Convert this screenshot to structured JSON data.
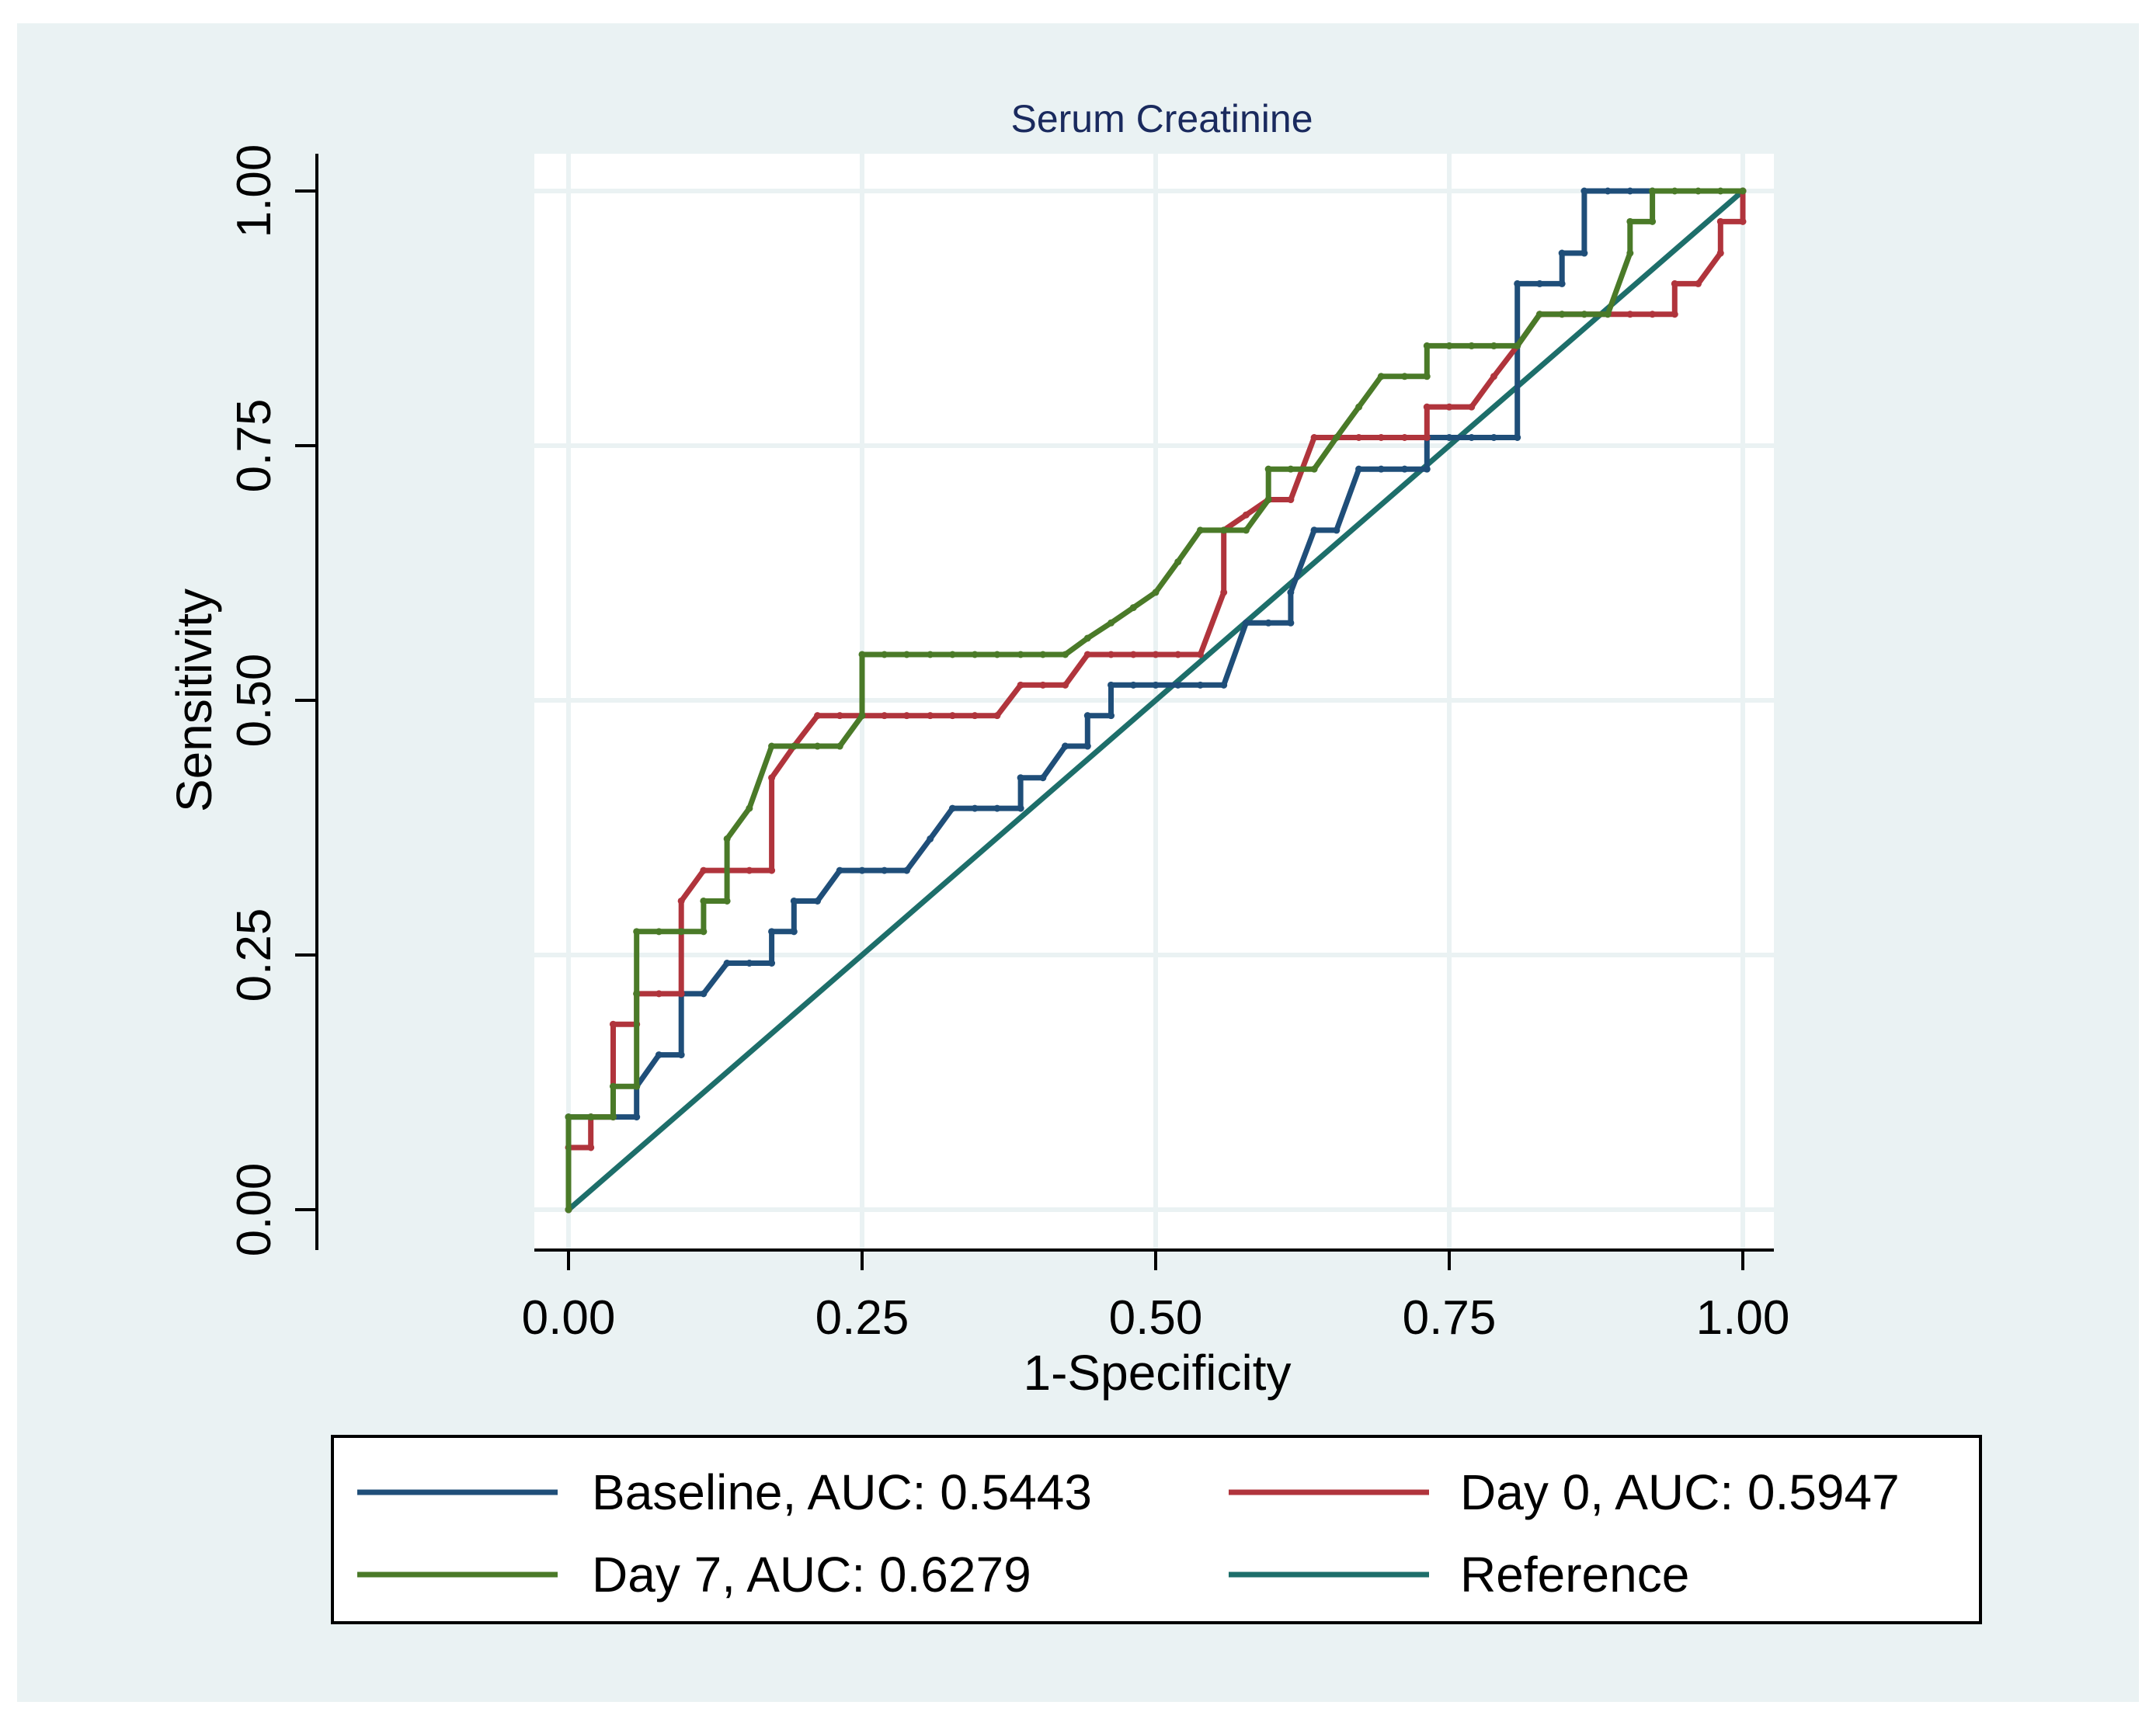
{
  "chart_data": {
    "type": "line",
    "title": "Serum Creatinine",
    "xlabel": "1-Specificity",
    "ylabel": "Sensitivity",
    "xlim": [
      0,
      1
    ],
    "ylim": [
      0,
      1
    ],
    "xticks": [
      0,
      0.25,
      0.5,
      0.75,
      1
    ],
    "yticks": [
      0,
      0.25,
      0.5,
      0.75,
      1
    ],
    "xtick_labels": [
      "0.00",
      "0.25",
      "0.50",
      "0.75",
      "1.00"
    ],
    "ytick_labels": [
      "0.00",
      "0.25",
      "0.50",
      "0.75",
      "1.00"
    ],
    "grid": true,
    "legend_position": "bottom",
    "series": [
      {
        "name": "Baseline",
        "legend_label": "Baseline, AUC: 0.5443",
        "auc": 0.5443,
        "color": "#1f4e79",
        "x": [
          0,
          0,
          0.019,
          0.058,
          0.058,
          0.077,
          0.096,
          0.096,
          0.115,
          0.135,
          0.154,
          0.173,
          0.173,
          0.192,
          0.192,
          0.212,
          0.231,
          0.25,
          0.269,
          0.288,
          0.308,
          0.327,
          0.346,
          0.365,
          0.385,
          0.385,
          0.404,
          0.423,
          0.423,
          0.442,
          0.442,
          0.462,
          0.462,
          0.481,
          0.5,
          0.519,
          0.538,
          0.558,
          0.577,
          0.596,
          0.615,
          0.615,
          0.635,
          0.635,
          0.654,
          0.673,
          0.692,
          0.712,
          0.731,
          0.731,
          0.75,
          0.769,
          0.788,
          0.808,
          0.808,
          0.827,
          0.846,
          0.846,
          0.865,
          0.865,
          0.885,
          0.904,
          0.923,
          1
        ],
        "y": [
          0,
          0.091,
          0.091,
          0.091,
          0.121,
          0.152,
          0.152,
          0.212,
          0.212,
          0.242,
          0.242,
          0.242,
          0.273,
          0.273,
          0.303,
          0.303,
          0.333,
          0.333,
          0.333,
          0.333,
          0.364,
          0.394,
          0.394,
          0.394,
          0.394,
          0.424,
          0.424,
          0.455,
          0.455,
          0.455,
          0.485,
          0.485,
          0.515,
          0.515,
          0.515,
          0.515,
          0.515,
          0.515,
          0.576,
          0.576,
          0.576,
          0.606,
          0.667,
          0.667,
          0.667,
          0.727,
          0.727,
          0.727,
          0.727,
          0.758,
          0.758,
          0.758,
          0.758,
          0.758,
          0.909,
          0.909,
          0.909,
          0.939,
          0.939,
          1,
          1,
          1,
          1,
          1
        ]
      },
      {
        "name": "Day 0",
        "legend_label": "Day 0, AUC: 0.5947",
        "auc": 0.5947,
        "color": "#b0343c",
        "x": [
          0,
          0,
          0.019,
          0.019,
          0.038,
          0.038,
          0.058,
          0.058,
          0.077,
          0.096,
          0.096,
          0.115,
          0.135,
          0.154,
          0.173,
          0.173,
          0.192,
          0.212,
          0.231,
          0.25,
          0.269,
          0.288,
          0.308,
          0.327,
          0.346,
          0.365,
          0.385,
          0.404,
          0.423,
          0.442,
          0.462,
          0.481,
          0.5,
          0.519,
          0.538,
          0.558,
          0.558,
          0.577,
          0.596,
          0.615,
          0.635,
          0.654,
          0.673,
          0.692,
          0.712,
          0.731,
          0.731,
          0.75,
          0.769,
          0.788,
          0.808,
          0.827,
          0.846,
          0.865,
          0.885,
          0.904,
          0.923,
          0.942,
          0.942,
          0.962,
          0.981,
          0.981,
          1,
          1
        ],
        "y": [
          0,
          0.061,
          0.061,
          0.091,
          0.091,
          0.182,
          0.182,
          0.212,
          0.212,
          0.212,
          0.303,
          0.333,
          0.333,
          0.333,
          0.333,
          0.424,
          0.455,
          0.485,
          0.485,
          0.485,
          0.485,
          0.485,
          0.485,
          0.485,
          0.485,
          0.485,
          0.515,
          0.515,
          0.515,
          0.545,
          0.545,
          0.545,
          0.545,
          0.545,
          0.545,
          0.606,
          0.667,
          0.682,
          0.697,
          0.697,
          0.758,
          0.758,
          0.758,
          0.758,
          0.758,
          0.758,
          0.788,
          0.788,
          0.788,
          0.818,
          0.848,
          0.879,
          0.879,
          0.879,
          0.879,
          0.879,
          0.879,
          0.879,
          0.909,
          0.909,
          0.939,
          0.97,
          0.97,
          1
        ]
      },
      {
        "name": "Day 7",
        "legend_label": "Day 7, AUC: 0.6279",
        "auc": 0.6279,
        "color": "#4a7a28",
        "x": [
          0,
          0,
          0.019,
          0.038,
          0.038,
          0.058,
          0.058,
          0.058,
          0.077,
          0.096,
          0.115,
          0.115,
          0.135,
          0.135,
          0.154,
          0.173,
          0.192,
          0.212,
          0.231,
          0.25,
          0.25,
          0.269,
          0.288,
          0.308,
          0.327,
          0.346,
          0.365,
          0.385,
          0.404,
          0.423,
          0.442,
          0.462,
          0.481,
          0.5,
          0.519,
          0.538,
          0.558,
          0.577,
          0.596,
          0.596,
          0.615,
          0.635,
          0.654,
          0.673,
          0.692,
          0.712,
          0.731,
          0.731,
          0.75,
          0.769,
          0.788,
          0.808,
          0.827,
          0.846,
          0.865,
          0.885,
          0.904,
          0.904,
          0.923,
          0.923,
          0.942,
          0.962,
          0.981,
          1
        ],
        "y": [
          0,
          0.091,
          0.091,
          0.091,
          0.121,
          0.121,
          0.212,
          0.273,
          0.273,
          0.273,
          0.273,
          0.303,
          0.303,
          0.364,
          0.394,
          0.455,
          0.455,
          0.455,
          0.455,
          0.485,
          0.545,
          0.545,
          0.545,
          0.545,
          0.545,
          0.545,
          0.545,
          0.545,
          0.545,
          0.545,
          0.561,
          0.576,
          0.591,
          0.606,
          0.636,
          0.667,
          0.667,
          0.667,
          0.697,
          0.727,
          0.727,
          0.727,
          0.758,
          0.788,
          0.818,
          0.818,
          0.818,
          0.848,
          0.848,
          0.848,
          0.848,
          0.848,
          0.879,
          0.879,
          0.879,
          0.879,
          0.939,
          0.97,
          0.97,
          1,
          1,
          1,
          1,
          1
        ]
      },
      {
        "name": "Reference",
        "legend_label": "Reference",
        "color": "#1d6e6a",
        "x": [
          0,
          1
        ],
        "y": [
          0,
          1
        ]
      }
    ]
  },
  "colors": {
    "outer_background": "#eaf2f3",
    "plot_background": "#ffffff",
    "grid": "#eaf2f3",
    "title": "#1a2a5e"
  }
}
